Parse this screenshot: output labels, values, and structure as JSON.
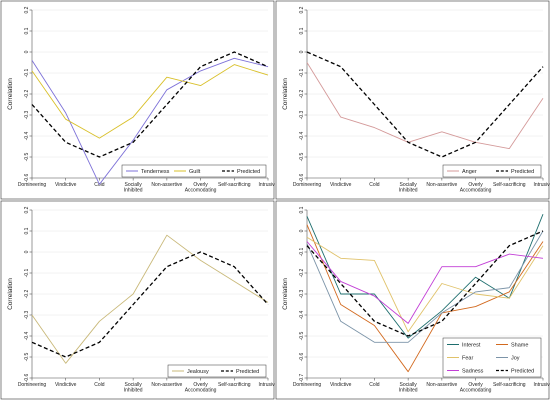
{
  "chart_data": [
    {
      "type": "line",
      "categories": [
        "Domineering",
        "Vindictive",
        "Cold",
        "Socially Inhibited",
        "Non-assertive",
        "Overly Accomodating",
        "Self-sacrificing",
        "Intrusive"
      ],
      "ylabel": "Correlation",
      "ylim": [
        -0.6,
        0.2
      ],
      "yticks": [
        -0.6,
        -0.5,
        -0.4,
        -0.3,
        -0.2,
        -0.1,
        0,
        0.1,
        0.2
      ],
      "ytick_labels": [
        "-0.6",
        "-0.5",
        "-0.4",
        "-0.3",
        "-0.2",
        "-0.1",
        "0",
        "0.1",
        "0.2"
      ],
      "grid": true,
      "legend": {
        "position": "bottom-right",
        "columns": 3
      },
      "series": [
        {
          "name": "Tenderness",
          "color": "#7e72d8",
          "dash": "solid",
          "values": [
            -0.04,
            -0.29,
            -0.63,
            -0.42,
            -0.18,
            -0.09,
            -0.03,
            -0.07
          ]
        },
        {
          "name": "Guilt",
          "color": "#d9c02a",
          "dash": "solid",
          "values": [
            -0.09,
            -0.32,
            -0.41,
            -0.31,
            -0.12,
            -0.16,
            -0.06,
            -0.11
          ]
        },
        {
          "name": "Predicted",
          "color": "#000000",
          "dash": "dashed",
          "values": [
            -0.25,
            -0.43,
            -0.5,
            -0.43,
            -0.25,
            -0.07,
            0,
            -0.07
          ]
        }
      ]
    },
    {
      "type": "line",
      "categories": [
        "Domineering",
        "Vindictive",
        "Cold",
        "Socially Inhibited",
        "Non-assertive",
        "Overly Accomodating",
        "Self-sacrificing",
        "Intrusive"
      ],
      "ylabel": "Correlation",
      "ylim": [
        -0.6,
        0.2
      ],
      "yticks": [
        -0.6,
        -0.5,
        -0.4,
        -0.3,
        -0.2,
        -0.1,
        0,
        0.1,
        0.2
      ],
      "ytick_labels": [
        "-0.6",
        "-0.5",
        "-0.4",
        "-0.3",
        "-0.2",
        "-0.1",
        "0",
        "0.1",
        "0.2"
      ],
      "grid": true,
      "legend": {
        "position": "bottom-right",
        "columns": 2
      },
      "series": [
        {
          "name": "Anger",
          "color": "#d49a9a",
          "dash": "solid",
          "values": [
            -0.05,
            -0.31,
            -0.36,
            -0.43,
            -0.38,
            -0.43,
            -0.46,
            -0.22
          ]
        },
        {
          "name": "Predicted",
          "color": "#000000",
          "dash": "dashed",
          "values": [
            0,
            -0.07,
            -0.25,
            -0.43,
            -0.5,
            -0.43,
            -0.25,
            -0.07
          ]
        }
      ]
    },
    {
      "type": "line",
      "categories": [
        "Domineering",
        "Vindictive",
        "Cold",
        "Socially Inhibited",
        "Non-assertive",
        "Overly Accomodating",
        "Self-sacrificing",
        "Intrusive"
      ],
      "ylabel": "Correlation",
      "ylim": [
        -0.6,
        0.2
      ],
      "yticks": [
        -0.6,
        -0.5,
        -0.4,
        -0.3,
        -0.2,
        -0.1,
        0,
        0.1,
        0.2
      ],
      "ytick_labels": [
        "-0.6",
        "-0.5",
        "-0.4",
        "-0.3",
        "-0.2",
        "-0.1",
        "0",
        "0.1",
        "0.2"
      ],
      "grid": true,
      "legend": {
        "position": "bottom-right",
        "columns": 2
      },
      "series": [
        {
          "name": "Jealousy",
          "color": "#c9b97a",
          "dash": "solid",
          "values": [
            -0.3,
            -0.53,
            -0.33,
            -0.2,
            0.08,
            -0.04,
            -0.14,
            -0.24
          ]
        },
        {
          "name": "Predicted",
          "color": "#000000",
          "dash": "dashed",
          "values": [
            -0.43,
            -0.5,
            -0.43,
            -0.25,
            -0.07,
            0,
            -0.07,
            -0.25
          ]
        }
      ]
    },
    {
      "type": "line",
      "categories": [
        "Domineering",
        "Vindictive",
        "Cold",
        "Socially Inhibited",
        "Non-assertive",
        "Overly Accomodating",
        "Self-sacrificing",
        "Intrusive"
      ],
      "ylabel": "Correlation",
      "ylim": [
        -0.7,
        0.1
      ],
      "yticks": [
        -0.7,
        -0.6,
        -0.5,
        -0.4,
        -0.3,
        -0.2,
        -0.1,
        0,
        0.1
      ],
      "ytick_labels": [
        "-0.7",
        "-0.6",
        "-0.5",
        "-0.4",
        "-0.3",
        "-0.2",
        "-0.1",
        "0",
        "0.1"
      ],
      "grid": true,
      "legend": {
        "position": "bottom-right",
        "columns": 2
      },
      "series": [
        {
          "name": "Interest",
          "color": "#1e6e6e",
          "dash": "solid",
          "values": [
            0.07,
            -0.3,
            -0.3,
            -0.51,
            -0.38,
            -0.22,
            -0.32,
            0.08
          ]
        },
        {
          "name": "Shame",
          "color": "#d2691e",
          "dash": "solid",
          "values": [
            0.03,
            -0.35,
            -0.45,
            -0.67,
            -0.39,
            -0.36,
            -0.29,
            -0.05
          ]
        },
        {
          "name": "Fear",
          "color": "#e0c26a",
          "dash": "solid",
          "values": [
            -0.03,
            -0.13,
            -0.14,
            -0.48,
            -0.25,
            -0.3,
            -0.32,
            -0.07
          ]
        },
        {
          "name": "Joy",
          "color": "#7c94a8",
          "dash": "solid",
          "values": [
            -0.06,
            -0.43,
            -0.53,
            -0.53,
            -0.39,
            -0.29,
            -0.27,
            0
          ]
        },
        {
          "name": "Sadness",
          "color": "#c23ed6",
          "dash": "solid",
          "values": [
            -0.05,
            -0.24,
            -0.31,
            -0.44,
            -0.17,
            -0.17,
            -0.11,
            -0.13
          ]
        },
        {
          "name": "Predicted",
          "color": "#000000",
          "dash": "dashed",
          "values": [
            -0.07,
            -0.25,
            -0.43,
            -0.5,
            -0.43,
            -0.25,
            -0.07,
            0
          ]
        }
      ]
    }
  ]
}
